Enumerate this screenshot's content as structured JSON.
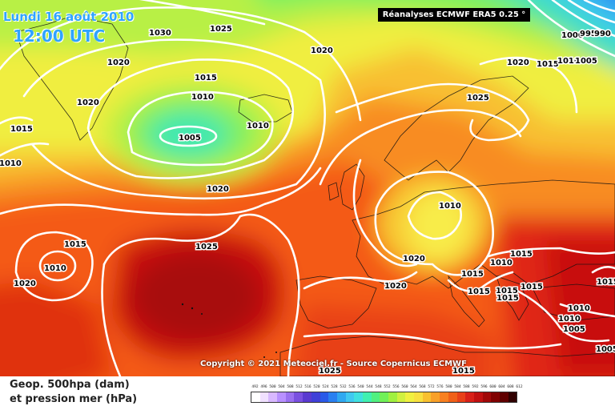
{
  "header": {
    "date": "Lundi 16 août 2010",
    "time": "12:00 UTC",
    "reanalysis": "Réanalyses ECMWF ERA5 0.25 °"
  },
  "copyright": "Copyright © 2021 Meteociel.fr - Source Copernicus ECMWF",
  "legend": {
    "title_line1": "Geop. 500hpa (dam)",
    "title_line2": "et pression mer (hPa)",
    "scale_values": [
      "492",
      "496",
      "500",
      "504",
      "508",
      "512",
      "516",
      "520",
      "524",
      "528",
      "532",
      "536",
      "540",
      "544",
      "548",
      "552",
      "556",
      "560",
      "564",
      "568",
      "572",
      "576",
      "580",
      "584",
      "588",
      "592",
      "596",
      "600",
      "604",
      "608",
      "612"
    ],
    "scale_colors": [
      "#ffffff",
      "#f0e0ff",
      "#d8b8ff",
      "#b890ff",
      "#9a70f0",
      "#7a50e0",
      "#5a3ad0",
      "#4040d8",
      "#2a5ae8",
      "#2a80f0",
      "#30a8f0",
      "#40c8f0",
      "#40e0e0",
      "#40f0b0",
      "#50f080",
      "#70f058",
      "#a0f040",
      "#d0f040",
      "#f0f040",
      "#f8e040",
      "#f8c030",
      "#f8a028",
      "#f88020",
      "#f06018",
      "#e84018",
      "#d82018",
      "#c01010",
      "#a00808",
      "#800000",
      "#600000",
      "#300000"
    ]
  },
  "isobar_labels": [
    {
      "id": "iso-1030",
      "text": "1030"
    },
    {
      "id": "iso-1025-north",
      "text": "1025"
    },
    {
      "id": "iso-1020-nw",
      "text": "1020"
    },
    {
      "id": "iso-1015-greenland",
      "text": "1015"
    },
    {
      "id": "iso-1020-greenland",
      "text": "1020"
    },
    {
      "id": "iso-1010-iceland",
      "text": "1010"
    },
    {
      "id": "iso-1010-east-iceland",
      "text": "1010"
    },
    {
      "id": "iso-1005-low",
      "text": "1005"
    },
    {
      "id": "iso-1015-west",
      "text": "1015"
    },
    {
      "id": "iso-1010-west-edge",
      "text": "1010"
    },
    {
      "id": "iso-1020-atlantic",
      "text": "1020"
    },
    {
      "id": "iso-1020-north-sea",
      "text": "1020"
    },
    {
      "id": "iso-1025-norway",
      "text": "1025"
    },
    {
      "id": "iso-1020-scandinavia",
      "text": "1020"
    },
    {
      "id": "iso-1015-ne",
      "text": "1015"
    },
    {
      "id": "iso-1010-ne",
      "text": "1010"
    },
    {
      "id": "iso-1005-ne",
      "text": "1005"
    },
    {
      "id": "iso-1000-ne",
      "text": "1000"
    },
    {
      "id": "iso-995-ne",
      "text": "995"
    },
    {
      "id": "iso-990-ne",
      "text": "990"
    },
    {
      "id": "iso-1015-azores-w",
      "text": "1015"
    },
    {
      "id": "iso-1010-low-w",
      "text": "1010"
    },
    {
      "id": "iso-1020-sw",
      "text": "1020"
    },
    {
      "id": "iso-1025-azores",
      "text": "1025"
    },
    {
      "id": "iso-1010-germany",
      "text": "1010"
    },
    {
      "id": "iso-1020-france",
      "text": "1020"
    },
    {
      "id": "iso-1020-iberia",
      "text": "1020"
    },
    {
      "id": "iso-1015-alps",
      "text": "1015"
    },
    {
      "id": "iso-1010-balkans",
      "text": "1010"
    },
    {
      "id": "iso-1015-balkans",
      "text": "1015"
    },
    {
      "id": "iso-1015-italy",
      "text": "1015"
    },
    {
      "id": "iso-1015-greece",
      "text": "1015"
    },
    {
      "id": "iso-1015-greece-2",
      "text": "1015"
    },
    {
      "id": "iso-1015-turkey",
      "text": "1015"
    },
    {
      "id": "iso-1015-east",
      "text": "1015"
    },
    {
      "id": "iso-1010-turkey",
      "text": "1010"
    },
    {
      "id": "iso-1010-turkey-2",
      "text": "1010"
    },
    {
      "id": "iso-1005-turkey",
      "text": "1005"
    },
    {
      "id": "iso-1025-africa",
      "text": "1025"
    },
    {
      "id": "iso-1015-africa",
      "text": "1015"
    },
    {
      "id": "iso-1005-se",
      "text": "1005"
    }
  ]
}
